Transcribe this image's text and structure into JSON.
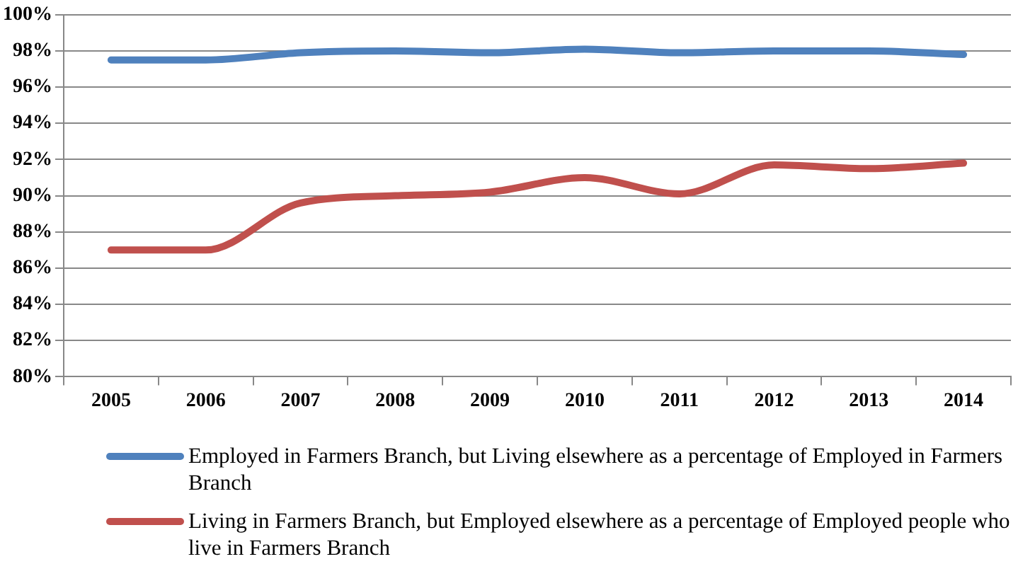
{
  "chart_data": {
    "type": "line",
    "categories": [
      "2005",
      "2006",
      "2007",
      "2008",
      "2009",
      "2010",
      "2011",
      "2012",
      "2013",
      "2014"
    ],
    "series": [
      {
        "name": "Employed in Farmers Branch, but Living elsewhere as a percentage of Employed in Farmers Branch",
        "color": "#4f81bd",
        "values": [
          97.5,
          97.5,
          97.9,
          98.0,
          97.9,
          98.1,
          97.9,
          98.0,
          98.0,
          97.8
        ]
      },
      {
        "name": "Living in Farmers Branch, but Employed elsewhere as a percentage of Employed people who live in Farmers Branch",
        "color": "#c0504d",
        "values": [
          87.0,
          87.0,
          89.6,
          90.0,
          90.2,
          91.0,
          90.1,
          91.7,
          91.5,
          91.8
        ]
      }
    ],
    "ylim": [
      80,
      100
    ],
    "yticks": [
      {
        "value": 80,
        "label": "80%"
      },
      {
        "value": 82,
        "label": "82%"
      },
      {
        "value": 84,
        "label": "84%"
      },
      {
        "value": 86,
        "label": "86%"
      },
      {
        "value": 88,
        "label": "88%"
      },
      {
        "value": 90,
        "label": "90%"
      },
      {
        "value": 92,
        "label": "92%"
      },
      {
        "value": 94,
        "label": "94%"
      },
      {
        "value": 96,
        "label": "96%"
      },
      {
        "value": 98,
        "label": "98%"
      },
      {
        "value": 100,
        "label": "100%"
      }
    ],
    "grid": "y",
    "legend": "bottom",
    "marker": "none",
    "line_style": "solid"
  }
}
